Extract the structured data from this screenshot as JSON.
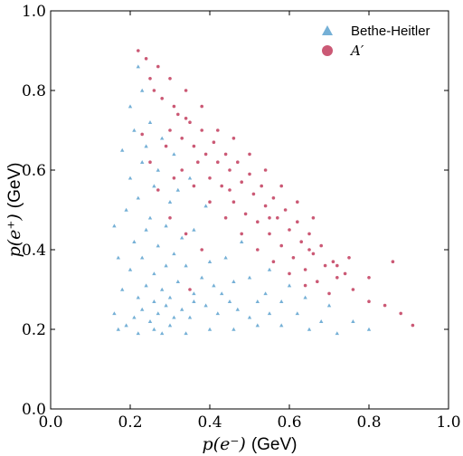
{
  "chart_data": {
    "type": "scatter",
    "xlabel_var": "p(e⁻)",
    "xlabel_unit": "(GeV)",
    "ylabel_var": "p(e⁺)",
    "ylabel_unit": "(GeV)",
    "xlim": [
      0.0,
      1.0
    ],
    "ylim": [
      0.0,
      1.0
    ],
    "x_ticks": [
      "0.0",
      "0.2",
      "0.4",
      "0.6",
      "0.8",
      "1.0"
    ],
    "y_ticks": [
      "0.0",
      "0.2",
      "0.4",
      "0.6",
      "0.8",
      "1.0"
    ],
    "grid": false,
    "legend_position": "top-right",
    "series": [
      {
        "name": "Bethe-Heitler",
        "marker": "triangle",
        "color": "#3a8fc4",
        "points": [
          [
            0.19,
            0.21
          ],
          [
            0.21,
            0.23
          ],
          [
            0.23,
            0.25
          ],
          [
            0.25,
            0.22
          ],
          [
            0.27,
            0.24
          ],
          [
            0.29,
            0.26
          ],
          [
            0.31,
            0.23
          ],
          [
            0.22,
            0.28
          ],
          [
            0.24,
            0.31
          ],
          [
            0.26,
            0.27
          ],
          [
            0.28,
            0.3
          ],
          [
            0.3,
            0.28
          ],
          [
            0.33,
            0.25
          ],
          [
            0.35,
            0.23
          ],
          [
            0.2,
            0.35
          ],
          [
            0.23,
            0.38
          ],
          [
            0.26,
            0.34
          ],
          [
            0.29,
            0.36
          ],
          [
            0.32,
            0.32
          ],
          [
            0.36,
            0.29
          ],
          [
            0.39,
            0.26
          ],
          [
            0.42,
            0.24
          ],
          [
            0.21,
            0.42
          ],
          [
            0.24,
            0.45
          ],
          [
            0.27,
            0.41
          ],
          [
            0.31,
            0.39
          ],
          [
            0.34,
            0.36
          ],
          [
            0.38,
            0.33
          ],
          [
            0.43,
            0.29
          ],
          [
            0.47,
            0.25
          ],
          [
            0.19,
            0.5
          ],
          [
            0.22,
            0.53
          ],
          [
            0.25,
            0.48
          ],
          [
            0.29,
            0.46
          ],
          [
            0.33,
            0.43
          ],
          [
            0.4,
            0.37
          ],
          [
            0.46,
            0.32
          ],
          [
            0.52,
            0.27
          ],
          [
            0.55,
            0.24
          ],
          [
            0.2,
            0.58
          ],
          [
            0.23,
            0.62
          ],
          [
            0.26,
            0.56
          ],
          [
            0.3,
            0.52
          ],
          [
            0.36,
            0.45
          ],
          [
            0.44,
            0.38
          ],
          [
            0.5,
            0.33
          ],
          [
            0.58,
            0.27
          ],
          [
            0.62,
            0.24
          ],
          [
            0.18,
            0.65
          ],
          [
            0.21,
            0.7
          ],
          [
            0.24,
            0.66
          ],
          [
            0.27,
            0.6
          ],
          [
            0.32,
            0.55
          ],
          [
            0.48,
            0.42
          ],
          [
            0.55,
            0.35
          ],
          [
            0.64,
            0.28
          ],
          [
            0.68,
            0.22
          ],
          [
            0.2,
            0.76
          ],
          [
            0.23,
            0.8
          ],
          [
            0.22,
            0.86
          ],
          [
            0.17,
            0.2
          ],
          [
            0.16,
            0.24
          ],
          [
            0.18,
            0.3
          ],
          [
            0.17,
            0.38
          ],
          [
            0.16,
            0.46
          ],
          [
            0.28,
            0.19
          ],
          [
            0.34,
            0.19
          ],
          [
            0.4,
            0.2
          ],
          [
            0.46,
            0.2
          ],
          [
            0.52,
            0.21
          ],
          [
            0.58,
            0.21
          ],
          [
            0.65,
            0.2
          ],
          [
            0.72,
            0.19
          ],
          [
            0.76,
            0.22
          ],
          [
            0.8,
            0.2
          ],
          [
            0.3,
            0.21
          ],
          [
            0.26,
            0.2
          ],
          [
            0.22,
            0.19
          ],
          [
            0.36,
            0.27
          ],
          [
            0.41,
            0.31
          ],
          [
            0.45,
            0.27
          ],
          [
            0.5,
            0.23
          ],
          [
            0.54,
            0.29
          ],
          [
            0.6,
            0.31
          ],
          [
            0.7,
            0.26
          ],
          [
            0.25,
            0.72
          ],
          [
            0.28,
            0.68
          ],
          [
            0.31,
            0.64
          ],
          [
            0.35,
            0.58
          ],
          [
            0.39,
            0.51
          ]
        ]
      },
      {
        "name": "A′",
        "marker": "circle",
        "color": "#b5123a",
        "points": [
          [
            0.3,
            0.7
          ],
          [
            0.33,
            0.68
          ],
          [
            0.36,
            0.66
          ],
          [
            0.39,
            0.64
          ],
          [
            0.42,
            0.62
          ],
          [
            0.45,
            0.6
          ],
          [
            0.48,
            0.57
          ],
          [
            0.51,
            0.54
          ],
          [
            0.54,
            0.51
          ],
          [
            0.57,
            0.48
          ],
          [
            0.6,
            0.45
          ],
          [
            0.63,
            0.42
          ],
          [
            0.66,
            0.39
          ],
          [
            0.69,
            0.36
          ],
          [
            0.72,
            0.33
          ],
          [
            0.32,
            0.74
          ],
          [
            0.35,
            0.72
          ],
          [
            0.38,
            0.7
          ],
          [
            0.41,
            0.67
          ],
          [
            0.44,
            0.64
          ],
          [
            0.47,
            0.62
          ],
          [
            0.5,
            0.59
          ],
          [
            0.53,
            0.56
          ],
          [
            0.56,
            0.53
          ],
          [
            0.59,
            0.5
          ],
          [
            0.62,
            0.47
          ],
          [
            0.65,
            0.44
          ],
          [
            0.68,
            0.41
          ],
          [
            0.71,
            0.37
          ],
          [
            0.74,
            0.34
          ],
          [
            0.28,
            0.78
          ],
          [
            0.31,
            0.76
          ],
          [
            0.34,
            0.73
          ],
          [
            0.37,
            0.62
          ],
          [
            0.4,
            0.58
          ],
          [
            0.43,
            0.56
          ],
          [
            0.46,
            0.52
          ],
          [
            0.49,
            0.49
          ],
          [
            0.52,
            0.47
          ],
          [
            0.55,
            0.44
          ],
          [
            0.58,
            0.41
          ],
          [
            0.61,
            0.38
          ],
          [
            0.64,
            0.35
          ],
          [
            0.67,
            0.32
          ],
          [
            0.25,
            0.83
          ],
          [
            0.27,
            0.86
          ],
          [
            0.24,
            0.88
          ],
          [
            0.22,
            0.9
          ],
          [
            0.26,
            0.8
          ],
          [
            0.29,
            0.66
          ],
          [
            0.33,
            0.6
          ],
          [
            0.36,
            0.56
          ],
          [
            0.4,
            0.52
          ],
          [
            0.44,
            0.48
          ],
          [
            0.48,
            0.44
          ],
          [
            0.52,
            0.4
          ],
          [
            0.56,
            0.37
          ],
          [
            0.6,
            0.34
          ],
          [
            0.64,
            0.31
          ],
          [
            0.7,
            0.29
          ],
          [
            0.76,
            0.3
          ],
          [
            0.8,
            0.27
          ],
          [
            0.84,
            0.26
          ],
          [
            0.88,
            0.24
          ],
          [
            0.91,
            0.21
          ],
          [
            0.86,
            0.37
          ],
          [
            0.8,
            0.33
          ],
          [
            0.75,
            0.38
          ],
          [
            0.42,
            0.7
          ],
          [
            0.46,
            0.68
          ],
          [
            0.5,
            0.64
          ],
          [
            0.54,
            0.6
          ],
          [
            0.58,
            0.56
          ],
          [
            0.62,
            0.52
          ],
          [
            0.66,
            0.48
          ],
          [
            0.38,
            0.76
          ],
          [
            0.34,
            0.8
          ],
          [
            0.3,
            0.83
          ],
          [
            0.27,
            0.55
          ],
          [
            0.3,
            0.48
          ],
          [
            0.34,
            0.44
          ],
          [
            0.38,
            0.4
          ],
          [
            0.25,
            0.62
          ],
          [
            0.23,
            0.69
          ],
          [
            0.31,
            0.58
          ],
          [
            0.45,
            0.55
          ],
          [
            0.55,
            0.48
          ],
          [
            0.65,
            0.4
          ],
          [
            0.72,
            0.36
          ],
          [
            0.35,
            0.3
          ]
        ]
      }
    ]
  }
}
